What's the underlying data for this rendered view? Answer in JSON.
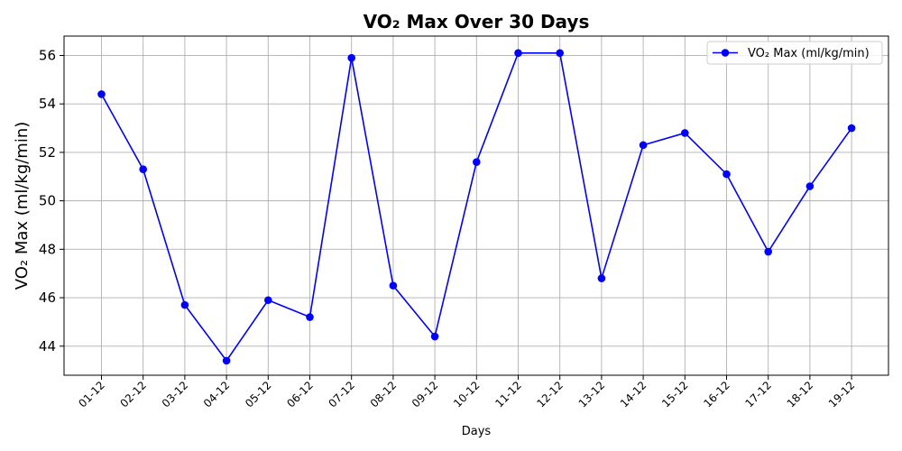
{
  "chart_data": {
    "type": "line",
    "title": "VO₂ Max Over 30 Days",
    "xlabel": "Days",
    "ylabel": "VO₂ Max (ml/kg/min)",
    "categories": [
      "01-12",
      "02-12",
      "03-12",
      "04-12",
      "05-12",
      "06-12",
      "07-12",
      "08-12",
      "09-12",
      "10-12",
      "11-12",
      "12-12",
      "13-12",
      "14-12",
      "15-12",
      "16-12",
      "17-12",
      "18-12",
      "19-12"
    ],
    "series": [
      {
        "name": "VO₂ Max (ml/kg/min)",
        "color": "#0000ff",
        "values": [
          54.4,
          51.3,
          45.7,
          43.4,
          45.9,
          45.2,
          55.9,
          46.5,
          44.4,
          51.6,
          56.1,
          56.1,
          46.8,
          52.3,
          52.8,
          51.1,
          47.9,
          50.6,
          53.0
        ]
      }
    ],
    "ylim": [
      42.8,
      56.8
    ],
    "yticks": [
      44,
      46,
      48,
      50,
      52,
      54,
      56
    ],
    "grid": true,
    "legend_position": "top-right"
  }
}
